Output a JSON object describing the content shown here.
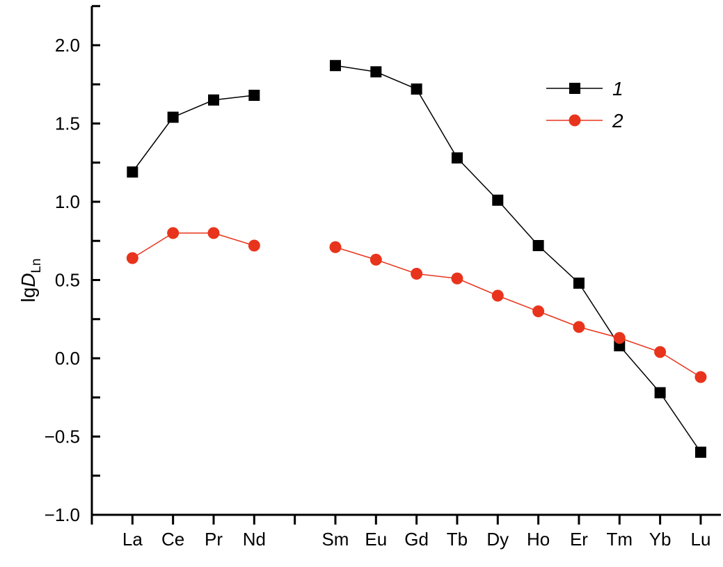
{
  "chart_data": {
    "type": "line",
    "title": "",
    "xlabel": "",
    "ylabel": "lgD",
    "ylabel_subscript": "Ln",
    "ylim": [
      -1.0,
      2.25
    ],
    "yticks": [
      "−1.0",
      "−0.5",
      "0.0",
      "0.5",
      "1.0",
      "1.5",
      "2.0"
    ],
    "ytick_values": [
      -1.0,
      -0.5,
      0.0,
      0.5,
      1.0,
      1.5,
      2.0
    ],
    "categories": [
      "La",
      "Ce",
      "Pr",
      "Nd",
      "Sm",
      "Eu",
      "Gd",
      "Tb",
      "Dy",
      "Ho",
      "Er",
      "Tm",
      "Yb",
      "Lu"
    ],
    "grid": false,
    "legend_position": "top-right",
    "series": [
      {
        "name": "1",
        "marker": "square",
        "color": "#000000",
        "values": [
          1.19,
          1.54,
          1.65,
          1.68,
          1.87,
          1.83,
          1.72,
          1.28,
          1.01,
          0.72,
          0.48,
          0.08,
          -0.22,
          -0.6
        ]
      },
      {
        "name": "2",
        "marker": "circle",
        "color": "#e8341c",
        "values": [
          0.64,
          0.8,
          0.8,
          0.72,
          0.71,
          0.63,
          0.54,
          0.51,
          0.4,
          0.3,
          0.2,
          0.13,
          0.04,
          -0.12
        ]
      }
    ]
  }
}
